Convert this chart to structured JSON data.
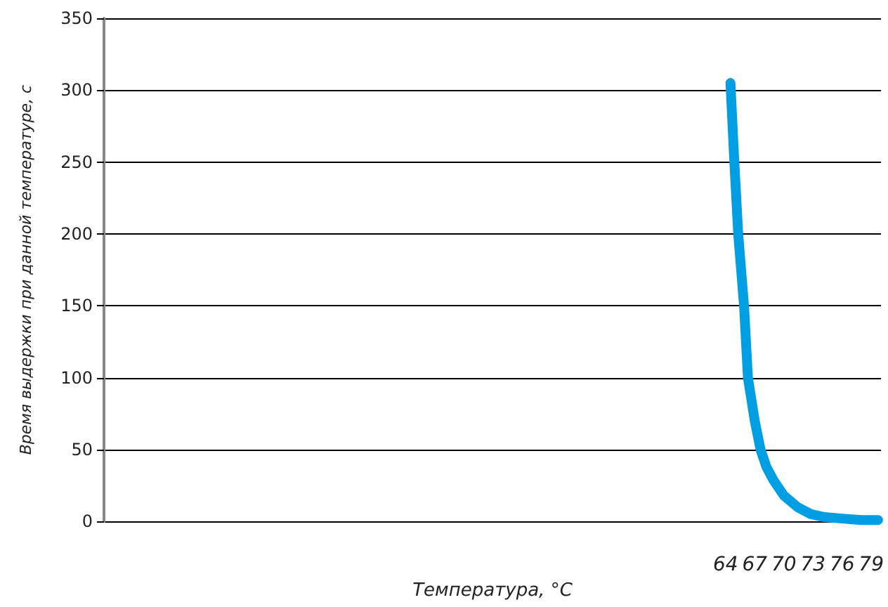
{
  "chart_data": {
    "type": "line",
    "xlabel": "Температура, °C",
    "ylabel": "Время выдержки при данной температуре, с",
    "xlim": [
      0,
      80
    ],
    "xticks": [
      64,
      67,
      70,
      73,
      76,
      79
    ],
    "ylim": [
      0,
      350
    ],
    "yticks": [
      0,
      50,
      100,
      150,
      200,
      250,
      300,
      350
    ],
    "grid": "y",
    "marker": "none",
    "line_style": "solid",
    "series": [
      {
        "color": "#009fe3",
        "x": [
          64.5,
          64.9,
          65.3,
          65.9,
          66.3,
          67,
          67.6,
          68.2,
          68.9,
          70,
          71.4,
          72.8,
          74.2,
          76,
          78,
          79.7
        ],
        "values": [
          305,
          250,
          200,
          150,
          100,
          70,
          50,
          38,
          29,
          18,
          10,
          5,
          3,
          2,
          1,
          1
        ]
      }
    ]
  }
}
